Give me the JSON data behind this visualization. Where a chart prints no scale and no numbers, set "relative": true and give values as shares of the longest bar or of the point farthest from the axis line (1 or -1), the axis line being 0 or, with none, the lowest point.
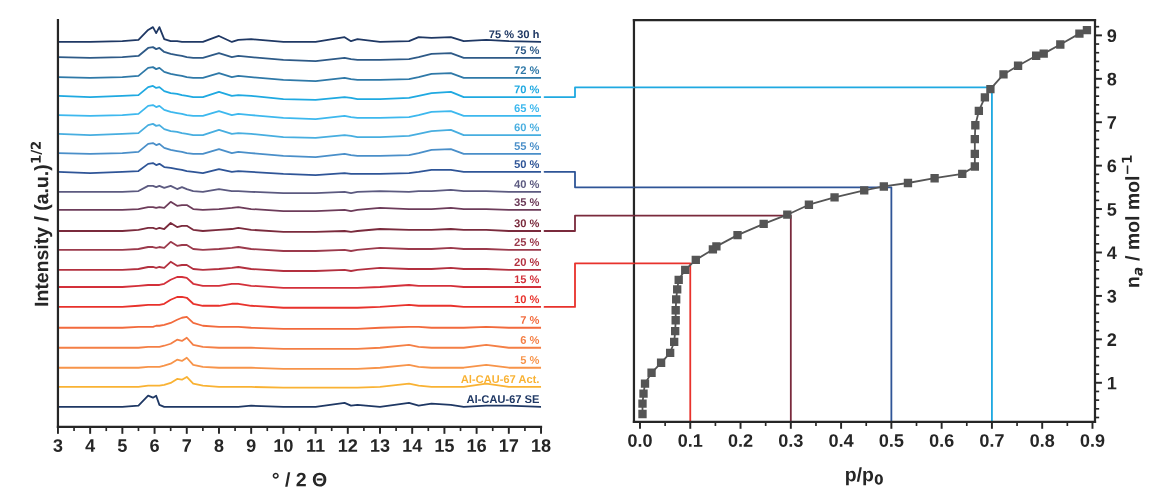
{
  "chart_data": [
    {
      "type": "line",
      "relative": true,
      "xlabel": "° / 2 Θ",
      "ylabel": "Intensity / (a.u.)$^{1/2}$",
      "marker": "none",
      "xlim": [
        3,
        18
      ],
      "xticks": [
        3,
        4,
        5,
        6,
        7,
        8,
        9,
        10,
        11,
        12,
        13,
        14,
        15,
        16,
        17,
        18
      ],
      "x": [
        3,
        4,
        5,
        5.5,
        5.8,
        5.95,
        6.05,
        6.15,
        6.3,
        6.5,
        6.7,
        6.85,
        7.0,
        7.2,
        7.5,
        8.0,
        8.4,
        8.6,
        9.0,
        10,
        11,
        11.9,
        12.1,
        12.3,
        13,
        13.9,
        14.2,
        14.6,
        15.2,
        15.6,
        16.3,
        17,
        18
      ],
      "series": [
        {
          "name": "75 % 30 h",
          "color": "#1f3864",
          "values": [
            0.963,
            0.963,
            0.965,
            0.968,
            0.993,
            1.0,
            0.985,
            1.0,
            0.97,
            0.965,
            0.965,
            0.963,
            0.963,
            0.963,
            0.963,
            0.978,
            0.963,
            0.968,
            0.97,
            0.963,
            0.963,
            0.975,
            0.965,
            0.97,
            0.963,
            0.965,
            0.975,
            0.973,
            0.975,
            0.965,
            0.968,
            0.965,
            0.963
          ]
        },
        {
          "name": "75 %",
          "color": "#2e5a87",
          "values": [
            0.925,
            0.923,
            0.925,
            0.928,
            0.948,
            0.95,
            0.945,
            0.948,
            0.938,
            0.933,
            0.93,
            0.928,
            0.925,
            0.923,
            0.923,
            0.935,
            0.925,
            0.928,
            0.925,
            0.918,
            0.915,
            0.923,
            0.92,
            0.918,
            0.918,
            0.92,
            0.925,
            0.933,
            0.935,
            0.923,
            0.923,
            0.923,
            0.923
          ]
        },
        {
          "name": "72 %",
          "color": "#2f79a8",
          "values": [
            0.875,
            0.873,
            0.875,
            0.878,
            0.898,
            0.9,
            0.895,
            0.898,
            0.888,
            0.883,
            0.88,
            0.878,
            0.875,
            0.873,
            0.873,
            0.885,
            0.875,
            0.878,
            0.875,
            0.868,
            0.865,
            0.873,
            0.87,
            0.868,
            0.868,
            0.87,
            0.875,
            0.883,
            0.885,
            0.873,
            0.873,
            0.873,
            0.873
          ]
        },
        {
          "name": "70 %",
          "color": "#1fa9e1",
          "values": [
            0.828,
            0.825,
            0.828,
            0.83,
            0.85,
            0.853,
            0.848,
            0.85,
            0.84,
            0.835,
            0.833,
            0.83,
            0.828,
            0.825,
            0.825,
            0.838,
            0.828,
            0.83,
            0.828,
            0.82,
            0.818,
            0.825,
            0.823,
            0.82,
            0.82,
            0.823,
            0.828,
            0.835,
            0.838,
            0.825,
            0.825,
            0.825,
            0.825
          ]
        },
        {
          "name": "65 %",
          "color": "#3db8ee",
          "values": [
            0.78,
            0.778,
            0.78,
            0.783,
            0.803,
            0.805,
            0.8,
            0.803,
            0.793,
            0.788,
            0.785,
            0.783,
            0.78,
            0.778,
            0.778,
            0.79,
            0.78,
            0.783,
            0.78,
            0.773,
            0.77,
            0.778,
            0.775,
            0.773,
            0.773,
            0.775,
            0.78,
            0.788,
            0.79,
            0.778,
            0.778,
            0.778,
            0.778
          ]
        },
        {
          "name": "60 %",
          "color": "#47aee0",
          "values": [
            0.733,
            0.73,
            0.733,
            0.735,
            0.755,
            0.758,
            0.753,
            0.755,
            0.745,
            0.74,
            0.738,
            0.735,
            0.733,
            0.73,
            0.73,
            0.743,
            0.733,
            0.735,
            0.733,
            0.725,
            0.723,
            0.73,
            0.728,
            0.725,
            0.725,
            0.728,
            0.733,
            0.74,
            0.743,
            0.73,
            0.73,
            0.73,
            0.73
          ]
        },
        {
          "name": "55 %",
          "color": "#4a8fc9",
          "values": [
            0.685,
            0.683,
            0.685,
            0.688,
            0.708,
            0.71,
            0.705,
            0.708,
            0.698,
            0.693,
            0.69,
            0.688,
            0.685,
            0.683,
            0.683,
            0.695,
            0.685,
            0.688,
            0.685,
            0.678,
            0.675,
            0.683,
            0.68,
            0.678,
            0.678,
            0.68,
            0.685,
            0.693,
            0.695,
            0.683,
            0.683,
            0.683,
            0.683
          ]
        },
        {
          "name": "50 %",
          "color": "#2f5597",
          "values": [
            0.638,
            0.635,
            0.638,
            0.64,
            0.658,
            0.66,
            0.655,
            0.658,
            0.65,
            0.648,
            0.645,
            0.643,
            0.64,
            0.638,
            0.635,
            0.645,
            0.638,
            0.64,
            0.638,
            0.633,
            0.63,
            0.635,
            0.633,
            0.633,
            0.633,
            0.635,
            0.638,
            0.643,
            0.643,
            0.638,
            0.638,
            0.638,
            0.638
          ]
        },
        {
          "name": "40 %",
          "color": "#5c5a80",
          "values": [
            0.588,
            0.588,
            0.588,
            0.59,
            0.603,
            0.603,
            0.6,
            0.603,
            0.598,
            0.603,
            0.595,
            0.6,
            0.595,
            0.59,
            0.588,
            0.595,
            0.59,
            0.59,
            0.588,
            0.585,
            0.585,
            0.588,
            0.585,
            0.588,
            0.59,
            0.588,
            0.59,
            0.59,
            0.593,
            0.59,
            0.59,
            0.588,
            0.588
          ]
        },
        {
          "name": "35 %",
          "color": "#6d3c5a",
          "values": [
            0.543,
            0.543,
            0.543,
            0.545,
            0.55,
            0.55,
            0.548,
            0.55,
            0.548,
            0.563,
            0.553,
            0.555,
            0.555,
            0.545,
            0.543,
            0.545,
            0.548,
            0.55,
            0.545,
            0.54,
            0.54,
            0.543,
            0.54,
            0.543,
            0.548,
            0.545,
            0.545,
            0.545,
            0.548,
            0.545,
            0.545,
            0.543,
            0.543
          ]
        },
        {
          "name": "30 %",
          "color": "#7a2a3c",
          "values": [
            0.49,
            0.49,
            0.49,
            0.493,
            0.498,
            0.498,
            0.495,
            0.498,
            0.495,
            0.51,
            0.5,
            0.503,
            0.503,
            0.493,
            0.49,
            0.493,
            0.495,
            0.498,
            0.493,
            0.488,
            0.488,
            0.49,
            0.488,
            0.49,
            0.495,
            0.493,
            0.493,
            0.493,
            0.495,
            0.493,
            0.493,
            0.49,
            0.49
          ]
        },
        {
          "name": "25 %",
          "color": "#9b3a4c",
          "values": [
            0.443,
            0.443,
            0.443,
            0.445,
            0.45,
            0.45,
            0.448,
            0.45,
            0.448,
            0.463,
            0.453,
            0.455,
            0.455,
            0.445,
            0.443,
            0.445,
            0.448,
            0.45,
            0.445,
            0.44,
            0.44,
            0.443,
            0.44,
            0.443,
            0.448,
            0.445,
            0.445,
            0.445,
            0.448,
            0.445,
            0.445,
            0.443,
            0.443
          ]
        },
        {
          "name": "20 %",
          "color": "#b3303f",
          "values": [
            0.393,
            0.393,
            0.393,
            0.395,
            0.4,
            0.4,
            0.398,
            0.4,
            0.398,
            0.413,
            0.403,
            0.405,
            0.405,
            0.395,
            0.393,
            0.395,
            0.398,
            0.4,
            0.395,
            0.39,
            0.39,
            0.393,
            0.39,
            0.393,
            0.398,
            0.395,
            0.395,
            0.395,
            0.398,
            0.395,
            0.395,
            0.393,
            0.393
          ]
        },
        {
          "name": "15 %",
          "color": "#d3303a",
          "values": [
            0.35,
            0.35,
            0.35,
            0.353,
            0.355,
            0.355,
            0.355,
            0.355,
            0.358,
            0.368,
            0.375,
            0.375,
            0.373,
            0.358,
            0.353,
            0.353,
            0.358,
            0.358,
            0.353,
            0.348,
            0.348,
            0.348,
            0.348,
            0.348,
            0.35,
            0.355,
            0.353,
            0.353,
            0.353,
            0.35,
            0.35,
            0.35,
            0.35
          ]
        },
        {
          "name": "10 %",
          "color": "#e8322c",
          "values": [
            0.3,
            0.3,
            0.3,
            0.303,
            0.305,
            0.305,
            0.305,
            0.305,
            0.308,
            0.318,
            0.325,
            0.325,
            0.323,
            0.308,
            0.303,
            0.303,
            0.308,
            0.308,
            0.303,
            0.298,
            0.298,
            0.298,
            0.298,
            0.298,
            0.3,
            0.305,
            0.303,
            0.303,
            0.303,
            0.3,
            0.3,
            0.3,
            0.3
          ]
        },
        {
          "name": "7 %",
          "color": "#f26a3c",
          "values": [
            0.248,
            0.248,
            0.248,
            0.25,
            0.25,
            0.25,
            0.253,
            0.253,
            0.255,
            0.26,
            0.268,
            0.273,
            0.275,
            0.26,
            0.253,
            0.25,
            0.25,
            0.25,
            0.248,
            0.245,
            0.245,
            0.245,
            0.245,
            0.245,
            0.248,
            0.25,
            0.25,
            0.248,
            0.248,
            0.248,
            0.25,
            0.248,
            0.248
          ]
        },
        {
          "name": "6 %",
          "color": "#f47f45",
          "values": [
            0.198,
            0.198,
            0.198,
            0.198,
            0.2,
            0.2,
            0.2,
            0.2,
            0.203,
            0.208,
            0.218,
            0.215,
            0.223,
            0.205,
            0.2,
            0.198,
            0.198,
            0.198,
            0.198,
            0.195,
            0.195,
            0.195,
            0.195,
            0.195,
            0.198,
            0.205,
            0.2,
            0.198,
            0.198,
            0.198,
            0.205,
            0.198,
            0.198
          ]
        },
        {
          "name": "5 %",
          "color": "#f7944a",
          "values": [
            0.148,
            0.148,
            0.148,
            0.148,
            0.15,
            0.15,
            0.15,
            0.15,
            0.153,
            0.158,
            0.168,
            0.165,
            0.173,
            0.155,
            0.15,
            0.148,
            0.148,
            0.148,
            0.148,
            0.145,
            0.145,
            0.145,
            0.145,
            0.145,
            0.148,
            0.155,
            0.15,
            0.148,
            0.148,
            0.148,
            0.155,
            0.148,
            0.148
          ]
        },
        {
          "name": "Al-CAU-67 Act.",
          "color": "#f9b233",
          "values": [
            0.1,
            0.1,
            0.1,
            0.1,
            0.103,
            0.103,
            0.103,
            0.103,
            0.105,
            0.11,
            0.12,
            0.118,
            0.125,
            0.108,
            0.103,
            0.1,
            0.1,
            0.1,
            0.1,
            0.098,
            0.098,
            0.098,
            0.098,
            0.098,
            0.1,
            0.108,
            0.103,
            0.1,
            0.1,
            0.1,
            0.108,
            0.1,
            0.1
          ]
        },
        {
          "name": "Al-CAU-67 SE",
          "color": "#1f3864",
          "values": [
            0.05,
            0.05,
            0.05,
            0.053,
            0.078,
            0.073,
            0.078,
            0.055,
            0.05,
            0.05,
            0.05,
            0.05,
            0.05,
            0.05,
            0.05,
            0.05,
            0.05,
            0.05,
            0.053,
            0.05,
            0.05,
            0.06,
            0.053,
            0.055,
            0.05,
            0.06,
            0.053,
            0.058,
            0.055,
            0.05,
            0.053,
            0.053,
            0.05
          ]
        }
      ]
    },
    {
      "type": "line",
      "xlabel": "p/p$_{0}$",
      "ylabel": "n$_{a}$ / mol mol$^{−1}$",
      "xlim": [
        -0.012,
        0.905
      ],
      "ylim": [
        0.1,
        9.35
      ],
      "xticks": [
        {
          "value": 0,
          "label": "0.0"
        },
        0.1,
        0.2,
        0.3,
        0.4,
        0.5,
        0.6,
        0.7,
        0.8,
        0.9
      ],
      "yticks": [
        1,
        2,
        3,
        4,
        5,
        6,
        7,
        8,
        9
      ],
      "series": [
        {
          "color": "#e8322c",
          "marker": "none",
          "x": [
            0.1,
            0.1,
            -0.012
          ],
          "values": [
            0.1,
            3.75,
            3.75
          ]
        },
        {
          "color": "#7a2a3c",
          "marker": "none",
          "x": [
            0.3,
            0.3,
            -0.012
          ],
          "values": [
            0.1,
            4.85,
            4.85
          ]
        },
        {
          "color": "#2f5597",
          "marker": "none",
          "x": [
            0.5,
            0.5,
            -0.012
          ],
          "values": [
            0.1,
            5.5,
            5.5
          ]
        },
        {
          "color": "#1fa9e1",
          "marker": "none",
          "x": [
            0.7,
            0.7,
            -0.012
          ],
          "values": [
            0.1,
            7.8,
            7.8
          ]
        },
        {
          "color": "#555555",
          "marker": "square",
          "x": [
            0.005,
            0.005,
            0.007,
            0.01,
            0.023,
            0.042,
            0.06,
            0.068,
            0.07,
            0.071,
            0.071,
            0.072,
            0.074,
            0.077,
            0.09,
            0.111,
            0.145,
            0.152,
            0.194,
            0.246,
            0.293,
            0.336,
            0.387,
            0.446,
            0.485,
            0.533,
            0.586,
            0.641,
            0.666,
            0.666,
            0.666,
            0.667,
            0.674,
            0.686,
            0.697,
            0.723,
            0.752,
            0.788,
            0.803,
            0.836,
            0.874,
            0.889
          ],
          "values": [
            0.28,
            0.52,
            0.75,
            0.98,
            1.23,
            1.46,
            1.69,
            1.94,
            2.19,
            2.44,
            2.67,
            2.92,
            3.15,
            3.37,
            3.6,
            3.83,
            4.07,
            4.14,
            4.4,
            4.66,
            4.87,
            5.1,
            5.27,
            5.43,
            5.52,
            5.6,
            5.71,
            5.81,
            5.98,
            6.27,
            6.61,
            6.93,
            7.26,
            7.57,
            7.76,
            8.1,
            8.3,
            8.53,
            8.58,
            8.79,
            9.04,
            9.12
          ]
        }
      ]
    }
  ]
}
